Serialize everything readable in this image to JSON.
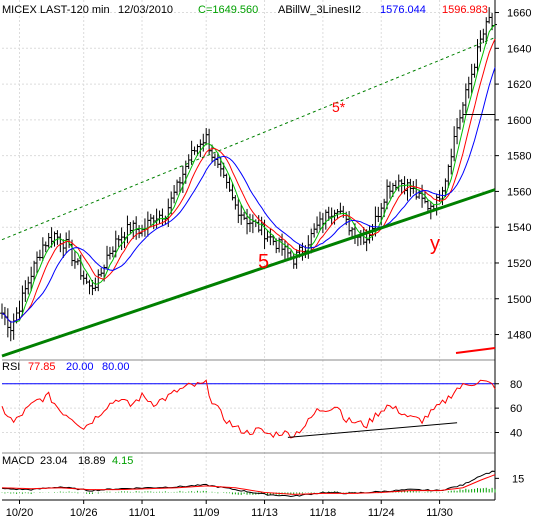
{
  "header": {
    "symbol": "MICEX LAST-120 min",
    "date": "12/03/2010",
    "close_text": "C=1649.560",
    "indicator_name": "ABillW_3LinesII2",
    "indicator_val1": "1576.044",
    "indicator_val2": "1596.983"
  },
  "rsi_header": {
    "label": "RSI",
    "v1": "77.85",
    "v2": "20.00",
    "v3": "80.00"
  },
  "macd_header": {
    "label": "MACD",
    "v1": "23.04",
    "v2": "18.89",
    "v3": "4.15"
  },
  "annotations": {
    "wave5": "5",
    "wave5star": "5*",
    "waveY": "y"
  },
  "colors": {
    "background": "#ffffff",
    "price_bars": "#000000",
    "upper_channel": "#008000",
    "trendline": "#008000",
    "ma_fast": "#00c000",
    "ma_mid": "#ff0000",
    "ma_slow": "#0000ff",
    "rsi_line": "#ff0000",
    "rsi_level": "#0000ff",
    "label_red": "#ff0000",
    "macd_hist": "#00a000"
  },
  "chart_data": [
    {
      "type": "ohlc",
      "title": "MICEX LAST-120 min",
      "y_ticks": [
        1480,
        1500,
        1520,
        1540,
        1560,
        1580,
        1600,
        1620,
        1640,
        1660
      ],
      "ylim": [
        1468,
        1667
      ],
      "x_ticks": [
        "10/20",
        "10/26",
        "11/01",
        "11/09",
        "11/13",
        "11/18",
        "11/24",
        "11/30"
      ],
      "x_tick_bar_index": [
        6,
        28,
        48,
        70,
        90,
        110,
        130,
        150
      ],
      "n_bars": 170,
      "close_anchors": [
        [
          0,
          1492
        ],
        [
          3,
          1484
        ],
        [
          6,
          1496
        ],
        [
          10,
          1514
        ],
        [
          14,
          1530
        ],
        [
          18,
          1536
        ],
        [
          22,
          1530
        ],
        [
          26,
          1518
        ],
        [
          30,
          1506
        ],
        [
          33,
          1510
        ],
        [
          36,
          1524
        ],
        [
          40,
          1534
        ],
        [
          44,
          1540
        ],
        [
          48,
          1538
        ],
        [
          52,
          1546
        ],
        [
          56,
          1548
        ],
        [
          60,
          1562
        ],
        [
          64,
          1578
        ],
        [
          68,
          1588
        ],
        [
          70,
          1590
        ],
        [
          73,
          1576
        ],
        [
          76,
          1566
        ],
        [
          80,
          1552
        ],
        [
          84,
          1544
        ],
        [
          88,
          1540
        ],
        [
          92,
          1534
        ],
        [
          96,
          1528
        ],
        [
          100,
          1522
        ],
        [
          104,
          1530
        ],
        [
          108,
          1540
        ],
        [
          112,
          1548
        ],
        [
          115,
          1552
        ],
        [
          118,
          1542
        ],
        [
          122,
          1536
        ],
        [
          125,
          1534
        ],
        [
          128,
          1544
        ],
        [
          132,
          1562
        ],
        [
          136,
          1566
        ],
        [
          140,
          1562
        ],
        [
          143,
          1556
        ],
        [
          146,
          1552
        ],
        [
          149,
          1554
        ],
        [
          152,
          1568
        ],
        [
          155,
          1590
        ],
        [
          158,
          1608
        ],
        [
          161,
          1626
        ],
        [
          164,
          1644
        ],
        [
          167,
          1656
        ],
        [
          169,
          1650
        ]
      ],
      "moving_averages": [
        {
          "name": "ABillW_3LinesII2 fast",
          "color": "#00c000",
          "period": 5
        },
        {
          "name": "ABillW_3LinesII2 mid",
          "color": "#ff0000",
          "period": 9
        },
        {
          "name": "ABillW_3LinesII2 slow",
          "color": "#0000ff",
          "period": 15
        }
      ],
      "trendline": {
        "from": [
          0,
          1468
        ],
        "to": [
          169,
          1561
        ],
        "label": "5"
      },
      "upper_channel": {
        "from": [
          0,
          1533
        ],
        "to": [
          169,
          1646
        ],
        "label": "5*"
      },
      "wave_y": {
        "at": [
          150,
          1542
        ],
        "label": "y"
      },
      "resistance_mark": {
        "from": [
          158,
          1603
        ],
        "to": [
          169,
          1603
        ]
      }
    },
    {
      "type": "line",
      "title": "RSI",
      "values_text": [
        "77.85",
        "20.00",
        "80.00"
      ],
      "y_ticks": [
        40,
        60,
        80
      ],
      "ylim": [
        24,
        88
      ],
      "levels": [
        20,
        80
      ],
      "rsi_anchors": [
        [
          0,
          60
        ],
        [
          4,
          48
        ],
        [
          8,
          58
        ],
        [
          12,
          66
        ],
        [
          16,
          70
        ],
        [
          20,
          58
        ],
        [
          24,
          52
        ],
        [
          28,
          44
        ],
        [
          32,
          52
        ],
        [
          36,
          62
        ],
        [
          40,
          68
        ],
        [
          44,
          62
        ],
        [
          48,
          70
        ],
        [
          52,
          64
        ],
        [
          56,
          68
        ],
        [
          60,
          74
        ],
        [
          64,
          78
        ],
        [
          68,
          79
        ],
        [
          70,
          80
        ],
        [
          72,
          66
        ],
        [
          76,
          52
        ],
        [
          80,
          44
        ],
        [
          84,
          40
        ],
        [
          88,
          42
        ],
        [
          92,
          38
        ],
        [
          96,
          40
        ],
        [
          100,
          38
        ],
        [
          104,
          46
        ],
        [
          108,
          58
        ],
        [
          112,
          60
        ],
        [
          115,
          62
        ],
        [
          118,
          50
        ],
        [
          122,
          48
        ],
        [
          125,
          46
        ],
        [
          128,
          54
        ],
        [
          132,
          62
        ],
        [
          136,
          58
        ],
        [
          140,
          52
        ],
        [
          144,
          50
        ],
        [
          148,
          58
        ],
        [
          152,
          66
        ],
        [
          156,
          76
        ],
        [
          160,
          80
        ],
        [
          164,
          82
        ],
        [
          167,
          80
        ],
        [
          169,
          78
        ]
      ],
      "divergence_line": {
        "from": [
          98,
          36
        ],
        "to": [
          156,
          48
        ]
      }
    },
    {
      "type": "line",
      "title": "MACD",
      "values_text": [
        "23.04",
        "18.89",
        "4.15"
      ],
      "y_ticks": [
        15
      ],
      "ylim": [
        -8,
        26
      ],
      "macd_anchors": [
        [
          0,
          4
        ],
        [
          10,
          3
        ],
        [
          20,
          6
        ],
        [
          30,
          2
        ],
        [
          40,
          4
        ],
        [
          50,
          5
        ],
        [
          60,
          6
        ],
        [
          70,
          8
        ],
        [
          80,
          3
        ],
        [
          90,
          -2
        ],
        [
          100,
          -4
        ],
        [
          110,
          0
        ],
        [
          120,
          -1
        ],
        [
          130,
          1
        ],
        [
          140,
          3
        ],
        [
          150,
          2
        ],
        [
          158,
          8
        ],
        [
          164,
          18
        ],
        [
          169,
          23.04
        ]
      ],
      "signal_anchors": [
        [
          0,
          5
        ],
        [
          10,
          4
        ],
        [
          20,
          5
        ],
        [
          30,
          3
        ],
        [
          40,
          3
        ],
        [
          50,
          4
        ],
        [
          60,
          5
        ],
        [
          70,
          7
        ],
        [
          80,
          5
        ],
        [
          90,
          0
        ],
        [
          100,
          -2
        ],
        [
          110,
          -1
        ],
        [
          120,
          -1
        ],
        [
          130,
          0
        ],
        [
          140,
          2
        ],
        [
          150,
          2
        ],
        [
          158,
          5
        ],
        [
          164,
          13
        ],
        [
          169,
          18.89
        ]
      ]
    }
  ]
}
